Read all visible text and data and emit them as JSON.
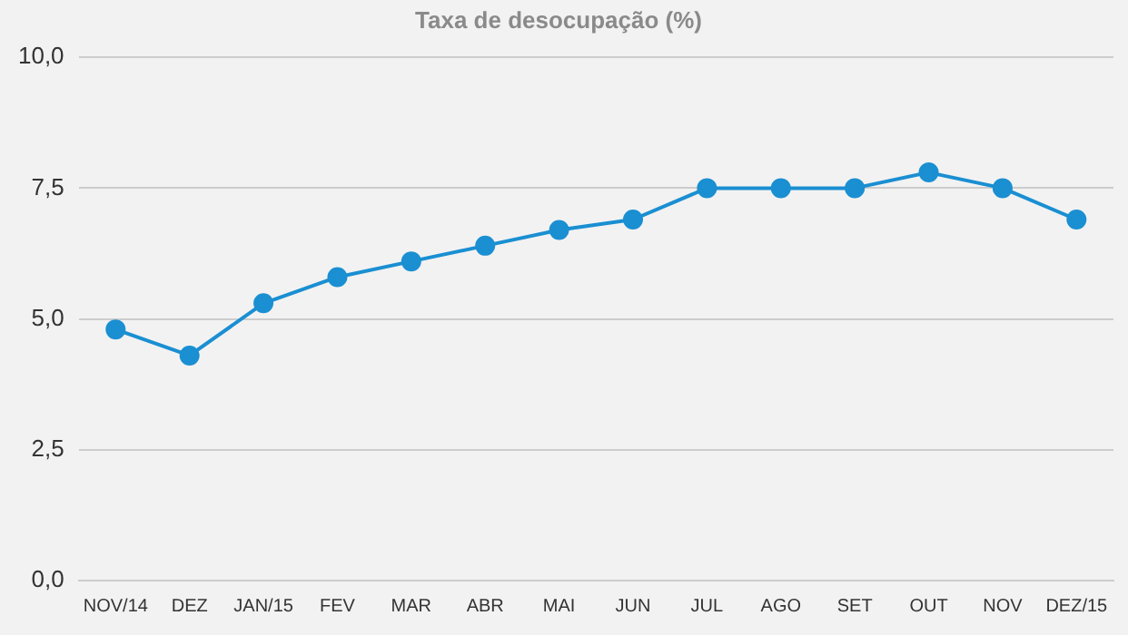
{
  "chart_data": {
    "type": "line",
    "title": "Taxa de desocupação (%)",
    "categories": [
      "NOV/14",
      "DEZ",
      "JAN/15",
      "FEV",
      "MAR",
      "ABR",
      "MAI",
      "JUN",
      "JUL",
      "AGO",
      "SET",
      "OUT",
      "NOV",
      "DEZ/15"
    ],
    "series": [
      {
        "color": "#1a8fd2",
        "values": [
          4.8,
          4.3,
          5.3,
          5.8,
          6.1,
          6.4,
          6.7,
          6.9,
          7.5,
          7.5,
          7.5,
          7.8,
          7.5,
          6.9
        ]
      }
    ],
    "ylim": [
      0,
      10
    ],
    "yticks": [
      {
        "value": 0,
        "label": "0,0"
      },
      {
        "value": 2.5,
        "label": "2,5"
      },
      {
        "value": 5,
        "label": "5,0"
      },
      {
        "value": 7.5,
        "label": "7,5"
      },
      {
        "value": 10,
        "label": "10,0"
      }
    ],
    "grid": "y",
    "legend": false,
    "marker": "circle",
    "line_style": "solid"
  }
}
